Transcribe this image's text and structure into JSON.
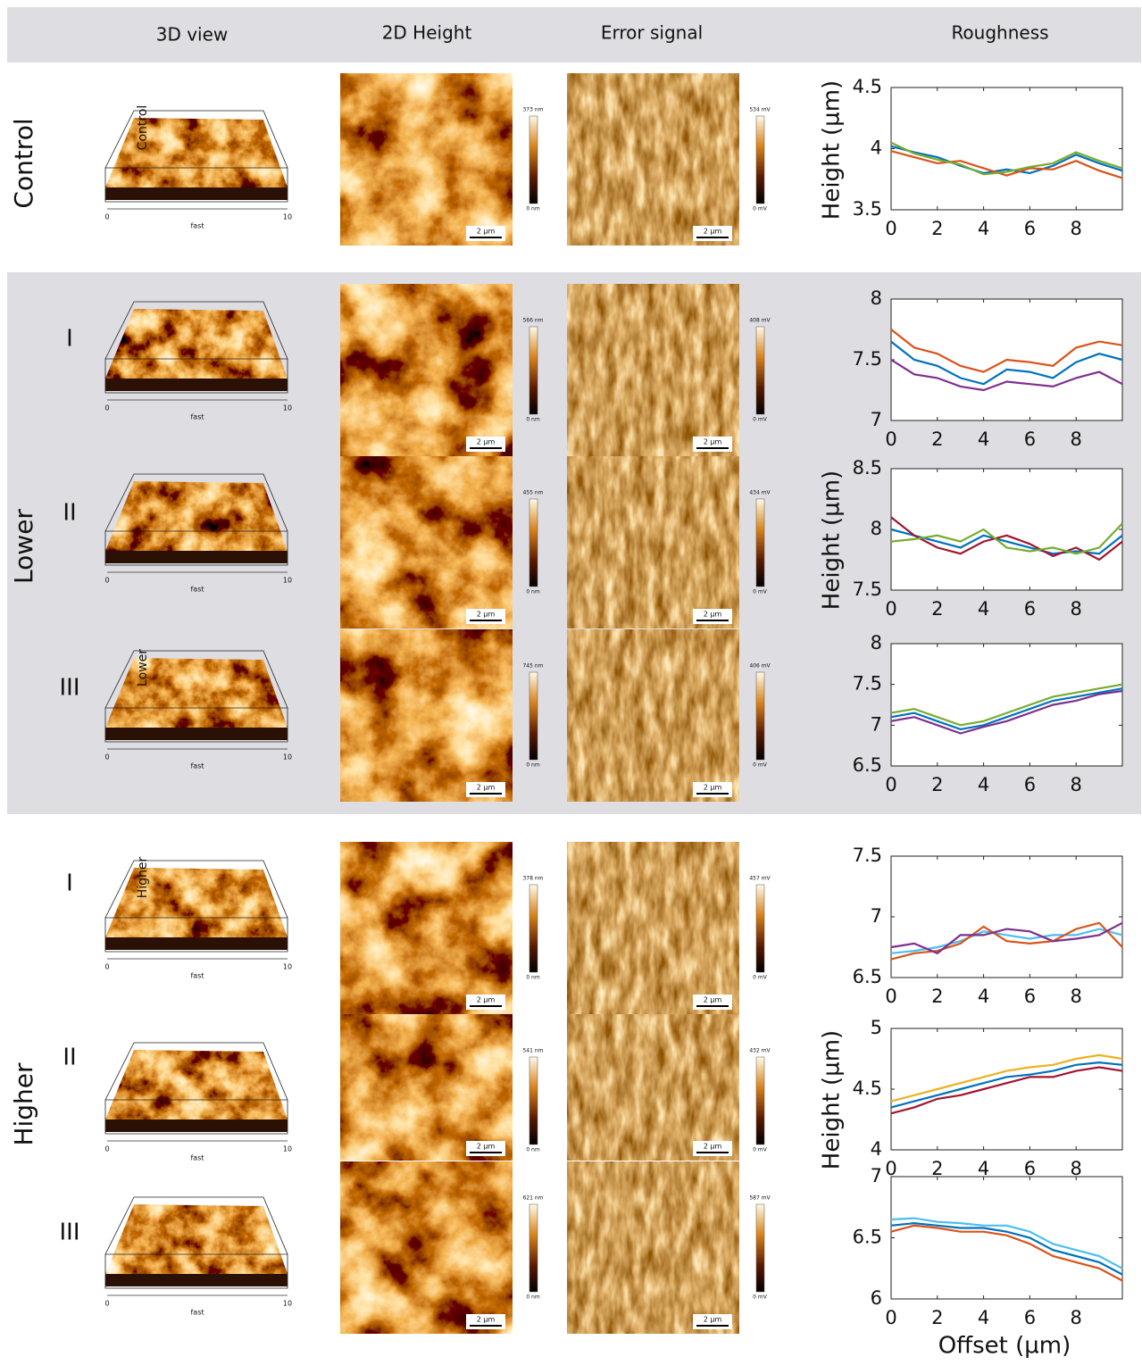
{
  "header": {
    "columns": [
      "3D view",
      "2D Height",
      "Error signal",
      "Roughness"
    ]
  },
  "x_axis_label": "Offset (µm)",
  "groups": [
    {
      "label": "Control",
      "y_axis_label": "Height (µm)",
      "rows": [
        {
          "overlay": "Control",
          "height_max": "373 nm",
          "height_min": "0 nm",
          "error_max": "534 mV",
          "error_min": "0 mV",
          "scale_bar": "2 µm",
          "axis_name": "fast",
          "axis_start": "0",
          "axis_end": "10"
        }
      ]
    },
    {
      "label": "Lower",
      "y_axis_label": "Height (µm)",
      "rows": [
        {
          "roman": "I",
          "height_max": "566 nm",
          "height_min": "0 nm",
          "error_max": "408 mV",
          "error_min": "0 mV",
          "scale_bar": "2 µm",
          "axis_name": "fast",
          "axis_start": "0",
          "axis_end": "10"
        },
        {
          "roman": "II",
          "height_max": "455 nm",
          "height_min": "0 nm",
          "error_max": "434 mV",
          "error_min": "0 mV",
          "scale_bar": "2 µm",
          "axis_name": "fast",
          "axis_start": "0",
          "axis_end": "10"
        },
        {
          "roman": "III",
          "overlay": "Lower",
          "height_max": "745 nm",
          "height_min": "0 nm",
          "error_max": "406 mV",
          "error_min": "0 mV",
          "scale_bar": "2 µm",
          "axis_name": "fast",
          "axis_start": "0",
          "axis_end": "10"
        }
      ]
    },
    {
      "label": "Higher",
      "y_axis_label": "Height (µm)",
      "rows": [
        {
          "roman": "I",
          "overlay": "Higher",
          "height_max": "378 nm",
          "height_min": "0 nm",
          "error_max": "457 mV",
          "error_min": "0 mV",
          "scale_bar": "2 µm",
          "axis_name": "fast",
          "axis_start": "0",
          "axis_end": "10"
        },
        {
          "roman": "II",
          "height_max": "541 nm",
          "height_min": "0 nm",
          "error_max": "432 mV",
          "error_min": "0 mV",
          "scale_bar": "2 µm",
          "axis_name": "fast",
          "axis_start": "0",
          "axis_end": "10"
        },
        {
          "roman": "III",
          "height_max": "621 nm",
          "height_min": "0 nm",
          "error_max": "587 mV",
          "error_min": "0 mV",
          "scale_bar": "2 µm",
          "axis_name": "fast",
          "axis_start": "0",
          "axis_end": "10"
        }
      ]
    }
  ],
  "chart_data": [
    {
      "type": "line",
      "x": [
        0,
        1,
        2,
        3,
        4,
        5,
        6,
        7,
        8,
        9,
        10
      ],
      "xlim": [
        0,
        10
      ],
      "xticks": [
        0,
        2,
        4,
        6,
        8
      ],
      "ylim": [
        3.5,
        4.5
      ],
      "yticks": [
        3.5,
        4,
        4.5
      ],
      "series": [
        {
          "color": "#0072bd",
          "values": [
            4.02,
            3.97,
            3.93,
            3.86,
            3.8,
            3.83,
            3.8,
            3.86,
            3.95,
            3.88,
            3.82
          ]
        },
        {
          "color": "#d95319",
          "values": [
            3.98,
            3.93,
            3.88,
            3.9,
            3.84,
            3.78,
            3.84,
            3.83,
            3.9,
            3.82,
            3.76
          ]
        },
        {
          "color": "#77ac30",
          "values": [
            4.05,
            3.96,
            3.91,
            3.87,
            3.79,
            3.81,
            3.85,
            3.88,
            3.97,
            3.9,
            3.84
          ]
        }
      ]
    },
    {
      "type": "line",
      "x": [
        0,
        1,
        2,
        3,
        4,
        5,
        6,
        7,
        8,
        9,
        10
      ],
      "xlim": [
        0,
        10
      ],
      "xticks": [
        0,
        2,
        4,
        6,
        8
      ],
      "ylim": [
        7,
        8
      ],
      "yticks": [
        7,
        7.5,
        8
      ],
      "series": [
        {
          "color": "#0072bd",
          "values": [
            7.65,
            7.5,
            7.45,
            7.35,
            7.3,
            7.42,
            7.4,
            7.35,
            7.48,
            7.55,
            7.5
          ]
        },
        {
          "color": "#7e2f8e",
          "values": [
            7.5,
            7.38,
            7.35,
            7.28,
            7.25,
            7.32,
            7.3,
            7.28,
            7.35,
            7.4,
            7.3
          ]
        },
        {
          "color": "#d95319",
          "values": [
            7.75,
            7.6,
            7.55,
            7.45,
            7.4,
            7.5,
            7.48,
            7.45,
            7.6,
            7.65,
            7.62
          ]
        }
      ]
    },
    {
      "type": "line",
      "x": [
        0,
        1,
        2,
        3,
        4,
        5,
        6,
        7,
        8,
        9,
        10
      ],
      "xlim": [
        0,
        10
      ],
      "xticks": [
        0,
        2,
        4,
        6,
        8
      ],
      "ylim": [
        7.5,
        8.5
      ],
      "yticks": [
        7.5,
        8,
        8.5
      ],
      "series": [
        {
          "color": "#0072bd",
          "values": [
            8.0,
            7.95,
            7.9,
            7.85,
            7.95,
            7.9,
            7.85,
            7.8,
            7.82,
            7.8,
            7.95
          ]
        },
        {
          "color": "#a2142f",
          "values": [
            8.1,
            7.95,
            7.85,
            7.8,
            7.9,
            7.95,
            7.88,
            7.78,
            7.85,
            7.75,
            7.9
          ]
        },
        {
          "color": "#77ac30",
          "values": [
            7.9,
            7.92,
            7.95,
            7.9,
            8.0,
            7.85,
            7.82,
            7.85,
            7.8,
            7.85,
            8.05
          ]
        }
      ]
    },
    {
      "type": "line",
      "x": [
        0,
        1,
        2,
        3,
        4,
        5,
        6,
        7,
        8,
        9,
        10
      ],
      "xlim": [
        0,
        10
      ],
      "xticks": [
        0,
        2,
        4,
        6,
        8
      ],
      "ylim": [
        6.5,
        8
      ],
      "yticks": [
        6.5,
        7,
        7.5,
        8
      ],
      "series": [
        {
          "color": "#0072bd",
          "values": [
            7.1,
            7.15,
            7.05,
            6.95,
            7.0,
            7.1,
            7.2,
            7.3,
            7.35,
            7.4,
            7.45
          ]
        },
        {
          "color": "#7e2f8e",
          "values": [
            7.05,
            7.1,
            7.0,
            6.9,
            6.98,
            7.05,
            7.15,
            7.25,
            7.3,
            7.38,
            7.42
          ]
        },
        {
          "color": "#77ac30",
          "values": [
            7.15,
            7.2,
            7.1,
            7.0,
            7.05,
            7.15,
            7.25,
            7.35,
            7.4,
            7.45,
            7.5
          ]
        }
      ]
    },
    {
      "type": "line",
      "x": [
        0,
        1,
        2,
        3,
        4,
        5,
        6,
        7,
        8,
        9,
        10
      ],
      "xlim": [
        0,
        10
      ],
      "xticks": [
        0,
        2,
        4,
        6,
        8
      ],
      "ylim": [
        6.5,
        7.5
      ],
      "yticks": [
        6.5,
        7,
        7.5
      ],
      "series": [
        {
          "color": "#4dbeee",
          "values": [
            6.7,
            6.72,
            6.75,
            6.8,
            6.88,
            6.85,
            6.82,
            6.85,
            6.85,
            6.9,
            6.85
          ]
        },
        {
          "color": "#d95319",
          "values": [
            6.65,
            6.7,
            6.72,
            6.78,
            6.92,
            6.8,
            6.78,
            6.8,
            6.9,
            6.95,
            6.75
          ]
        },
        {
          "color": "#7e2f8e",
          "values": [
            6.75,
            6.78,
            6.7,
            6.85,
            6.85,
            6.9,
            6.88,
            6.8,
            6.82,
            6.85,
            6.95
          ]
        }
      ]
    },
    {
      "type": "line",
      "x": [
        0,
        1,
        2,
        3,
        4,
        5,
        6,
        7,
        8,
        9,
        10
      ],
      "xlim": [
        0,
        10
      ],
      "xticks": [
        0,
        2,
        4,
        6,
        8
      ],
      "ylim": [
        4,
        5
      ],
      "yticks": [
        4,
        4.5,
        5
      ],
      "series": [
        {
          "color": "#0072bd",
          "values": [
            4.35,
            4.4,
            4.45,
            4.5,
            4.55,
            4.6,
            4.62,
            4.65,
            4.7,
            4.72,
            4.7
          ]
        },
        {
          "color": "#a2142f",
          "values": [
            4.3,
            4.35,
            4.42,
            4.45,
            4.5,
            4.55,
            4.6,
            4.6,
            4.65,
            4.68,
            4.65
          ]
        },
        {
          "color": "#edb120",
          "values": [
            4.4,
            4.45,
            4.5,
            4.55,
            4.6,
            4.65,
            4.68,
            4.7,
            4.75,
            4.78,
            4.75
          ]
        }
      ]
    },
    {
      "type": "line",
      "x": [
        0,
        1,
        2,
        3,
        4,
        5,
        6,
        7,
        8,
        9,
        10
      ],
      "xlim": [
        0,
        10
      ],
      "xticks": [
        0,
        2,
        4,
        6,
        8
      ],
      "ylim": [
        6,
        7
      ],
      "yticks": [
        6,
        6.5,
        7
      ],
      "series": [
        {
          "color": "#0072bd",
          "values": [
            6.6,
            6.62,
            6.6,
            6.58,
            6.58,
            6.55,
            6.5,
            6.4,
            6.35,
            6.3,
            6.2
          ]
        },
        {
          "color": "#d95319",
          "values": [
            6.55,
            6.6,
            6.58,
            6.55,
            6.55,
            6.52,
            6.45,
            6.35,
            6.3,
            6.25,
            6.15
          ]
        },
        {
          "color": "#4dbeee",
          "values": [
            6.65,
            6.66,
            6.63,
            6.62,
            6.6,
            6.6,
            6.55,
            6.45,
            6.4,
            6.35,
            6.25
          ]
        }
      ]
    }
  ]
}
